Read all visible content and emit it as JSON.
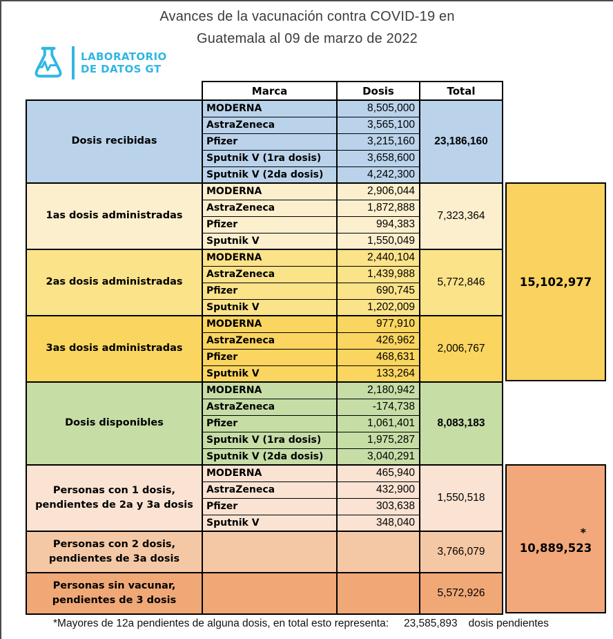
{
  "page": {
    "title_line1": "Avances de la vacunación contra COVID-19 en",
    "title_line2": "Guatemala al 09 de marzo de 2022"
  },
  "logo": {
    "name": "Laboratorio de Datos GT",
    "line1": "LABORATORIO",
    "line2": "DE DATOS GT",
    "brand_color": "#30B6E3"
  },
  "chart_data": {
    "type": "table",
    "title": "Avances de la vacunación contra COVID-19 en Guatemala al 09 de marzo de 2022",
    "columns": [
      "Marca",
      "Dosis",
      "Total"
    ],
    "sections": [
      {
        "id": "dosis-recibidas",
        "label": "Dosis recibidas",
        "color": "#BAD3EB",
        "total": "23,186,160",
        "total_bold": true,
        "rows": [
          [
            "MODERNA",
            "8,505,000"
          ],
          [
            "AstraZeneca",
            "3,565,100"
          ],
          [
            "Pfizer",
            "3,215,160"
          ],
          [
            "Sputnik V (1ra dosis)",
            "3,658,600"
          ],
          [
            "Sputnik V (2da dosis)",
            "4,242,300"
          ]
        ]
      },
      {
        "id": "1as-dosis-administradas",
        "label": "1as dosis administradas",
        "color": "#FCEFCE",
        "total": "7,323,364",
        "total_bold": false,
        "rows": [
          [
            "MODERNA",
            "2,906,044"
          ],
          [
            "AstraZeneca",
            "1,872,888"
          ],
          [
            "Pfizer",
            "994,383"
          ],
          [
            "Sputnik V",
            "1,550,049"
          ]
        ]
      },
      {
        "id": "2as-dosis-administradas",
        "label": "2as dosis administradas",
        "color": "#FBE38A",
        "total": "5,772,846",
        "total_bold": false,
        "rows": [
          [
            "MODERNA",
            "2,440,104"
          ],
          [
            "AstraZeneca",
            "1,439,988"
          ],
          [
            "Pfizer",
            "690,745"
          ],
          [
            "Sputnik V",
            "1,202,009"
          ]
        ]
      },
      {
        "id": "3as-dosis-administradas",
        "label": "3as dosis administradas",
        "color": "#FAD55F",
        "total": "2,006,767",
        "total_bold": false,
        "rows": [
          [
            "MODERNA",
            "977,910"
          ],
          [
            "AstraZeneca",
            "426,962"
          ],
          [
            "Pfizer",
            "468,631"
          ],
          [
            "Sputnik V",
            "133,264"
          ]
        ]
      },
      {
        "id": "dosis-disponibles",
        "label": "Dosis disponibles",
        "color": "#C6DDA6",
        "total": "8,083,183",
        "total_bold": true,
        "rows": [
          [
            "MODERNA",
            "2,180,942"
          ],
          [
            "AstraZeneca",
            "-174,738"
          ],
          [
            "Pfizer",
            "1,061,401"
          ],
          [
            "Sputnik V (1ra dosis)",
            "1,975,287"
          ],
          [
            "Sputnik V (2da dosis)",
            "3,040,291"
          ]
        ]
      },
      {
        "id": "personas-con-1-dosis",
        "label": "Personas con 1 dosis, pendientes de 2a y 3a dosis",
        "color": "#FAE3D3",
        "total": "1,550,518",
        "total_bold": false,
        "rows": [
          [
            "MODERNA",
            "465,940"
          ],
          [
            "AstraZeneca",
            "432,900"
          ],
          [
            "Pfizer",
            "303,638"
          ],
          [
            "Sputnik V",
            "348,040"
          ]
        ]
      },
      {
        "id": "personas-con-2-dosis",
        "label": "Personas con 2 dosis, pendientes de 3a dosis",
        "color": "#F5C8A5",
        "total": "3,766,079",
        "total_bold": false,
        "rows": []
      },
      {
        "id": "personas-sin-vacunar",
        "label": "Personas sin vacunar, pendientes de 3 dosis",
        "color": "#F0A877",
        "total": "5,572,926",
        "total_bold": false,
        "rows": []
      }
    ],
    "group_totals": [
      {
        "id": "dosis-administradas-total",
        "value": "15,102,977",
        "marker": "",
        "color": "#F9D25F",
        "spans_sections": [
          "1as-dosis-administradas",
          "2as-dosis-administradas",
          "3as-dosis-administradas"
        ]
      },
      {
        "id": "dosis-pendientes-total",
        "value": "10,889,523",
        "marker": "*",
        "color": "#F2A87B",
        "spans_sections": [
          "personas-con-1-dosis",
          "personas-con-2-dosis",
          "personas-sin-vacunar"
        ]
      }
    ],
    "footnote": {
      "text": "*Mayores de 12a pendientes de alguna dosis, en total esto representa:",
      "value": "23,585,893",
      "suffix": "dosis pendientes"
    }
  }
}
